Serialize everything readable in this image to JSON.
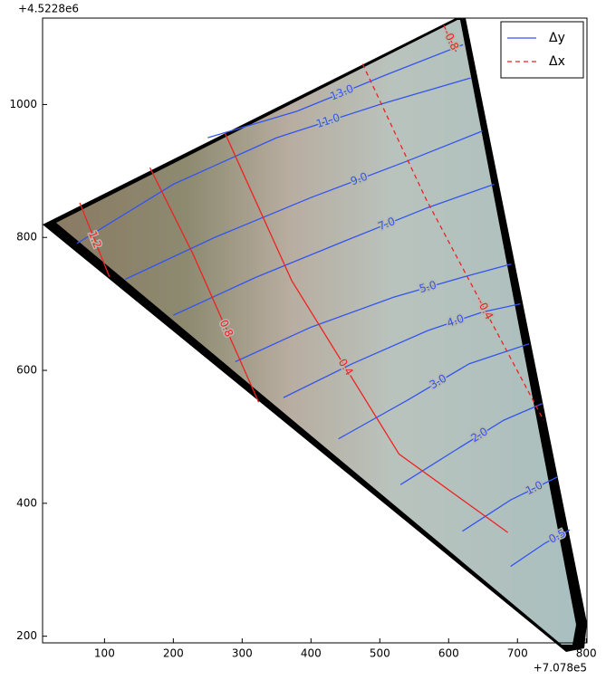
{
  "chart_data": {
    "type": "contour",
    "x_offset": "+7.078e5",
    "y_offset": "+4.5228e6",
    "xlim": [
      10,
      801
    ],
    "ylim": [
      190,
      1130
    ],
    "xticks": [
      100,
      200,
      300,
      400,
      500,
      600,
      700,
      800
    ],
    "yticks": [
      200,
      400,
      600,
      800,
      1000
    ],
    "legend": "upper right",
    "series": [
      {
        "name": "Δy",
        "color": "#3355ee",
        "dashed": false,
        "contours": [
          {
            "label": "0.5",
            "x": [
              690,
              740,
              776
            ],
            "y": [
              305,
              340,
              360
            ]
          },
          {
            "label": "1.0",
            "x": [
              620,
              690,
              759
            ],
            "y": [
              358,
              405,
              440
            ]
          },
          {
            "label": "2.0",
            "x": [
              530,
              610,
              680,
              736
            ],
            "y": [
              428,
              480,
              525,
              550
            ]
          },
          {
            "label": "3.0",
            "x": [
              440,
              540,
              630,
              717
            ],
            "y": [
              497,
              555,
              610,
              640
            ]
          },
          {
            "label": "4.0",
            "x": [
              360,
              460,
              570,
              650,
              704
            ],
            "y": [
              559,
              610,
              660,
              688,
              700
            ]
          },
          {
            "label": "5.0",
            "x": [
              290,
              400,
              520,
              620,
              691
            ],
            "y": [
              613,
              665,
              710,
              740,
              760
            ]
          },
          {
            "label": "7.0",
            "x": [
              200,
              320,
              450,
              570,
              666
            ],
            "y": [
              683,
              740,
              795,
              845,
              880
            ]
          },
          {
            "label": "9.0",
            "x": [
              130,
              260,
              400,
              540,
              649
            ],
            "y": [
              737,
              800,
              860,
              915,
              960
            ]
          },
          {
            "label": "11.0",
            "x": [
              60,
              200,
              350,
              500,
              632
            ],
            "y": [
              791,
              880,
              950,
              1000,
              1040
            ]
          },
          {
            "label": "13.0",
            "x": [
              250,
              380,
              510,
              621
            ],
            "y": [
              950,
              990,
              1045,
              1090
            ]
          }
        ]
      },
      {
        "name": "Δx",
        "color": "#ee2222",
        "dashed": true,
        "contours": [
          {
            "label": "1.2",
            "x": [
              64,
              107
            ],
            "y": [
              852,
              741
            ],
            "solid": true
          },
          {
            "label": "0.8",
            "x": [
              166,
              229,
              324
            ],
            "y": [
              905,
              774,
              552
            ],
            "solid": true
          },
          {
            "label": "0.4",
            "x": [
              275,
              372,
              528,
              686
            ],
            "y": [
              957,
              735,
              474,
              356
            ],
            "solid": true
          },
          {
            "label": "-0.4",
            "x": [
              475,
              567,
              738
            ],
            "y": [
              1061,
              858,
              525
            ]
          },
          {
            "label": "-0.8",
            "x": [
              593,
              613
            ],
            "y": [
              1119,
              1075
            ]
          }
        ]
      }
    ]
  }
}
